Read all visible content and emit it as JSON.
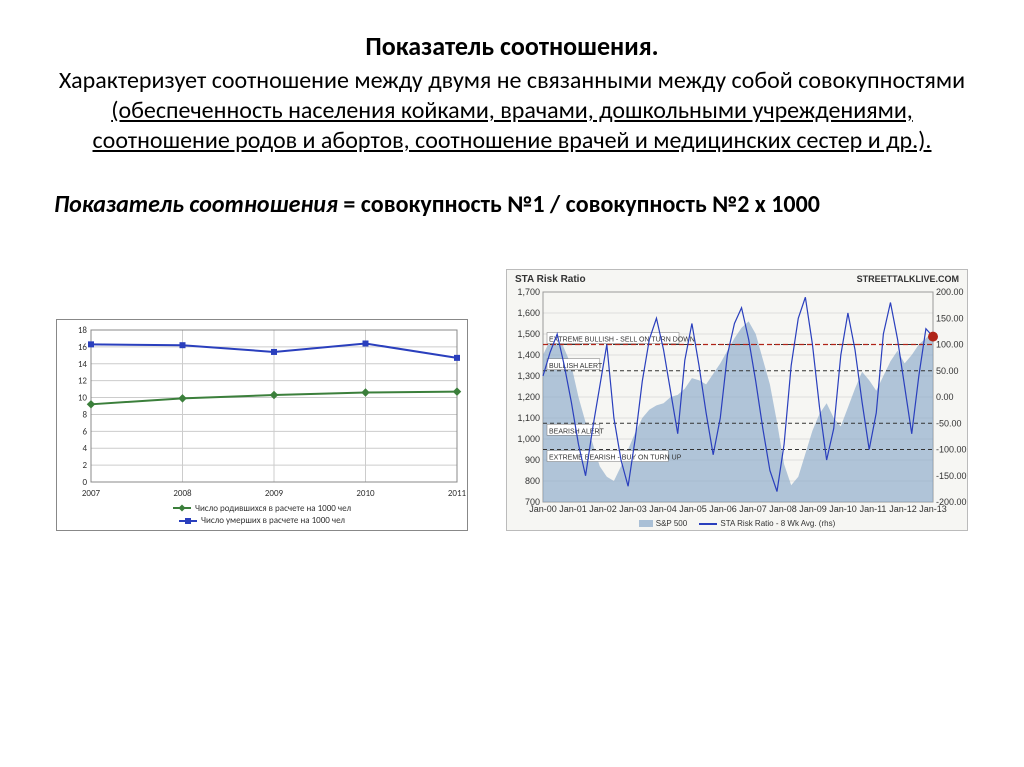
{
  "title": "Показатель соотношения.",
  "paragraph_plain": "Характеризует соотношение между двумя не связанными между собой совокупностями ",
  "paragraph_under": "(обеспеченность населения койками, врачами, дошкольными учреждениями, соотношение родов и абортов, соотношение врачей и медицинских сестер и др.).",
  "formula_ital": "Показатель соотношения",
  "formula_rest": " = совокупность №1 / совокупность №2 х 1000",
  "chart_left": {
    "type": "line",
    "ylim": [
      0,
      18
    ],
    "yticks": [
      0,
      2,
      4,
      6,
      8,
      10,
      12,
      14,
      16,
      18
    ],
    "xcats": [
      "2007",
      "2008",
      "2009",
      "2010",
      "2011"
    ],
    "series": [
      {
        "name": "Число родившихся в расчете на 1000 чел",
        "color": "#3b7f3b",
        "marker": "diamond",
        "values": [
          9.2,
          9.9,
          10.3,
          10.6,
          10.7
        ]
      },
      {
        "name": "Число умерших в расчете на 1000 чел",
        "color": "#2a3fbd",
        "marker": "square",
        "values": [
          16.3,
          16.2,
          15.4,
          16.4,
          14.7
        ]
      }
    ],
    "grid_color": "#cccccc",
    "background": "#ffffff",
    "label_fontsize": 9
  },
  "chart_right": {
    "type": "line-area",
    "title": "STA Risk Ratio",
    "brand": "STREETTALKLIVE.COM",
    "y_left": {
      "lim": [
        700,
        1700
      ],
      "ticks": [
        700,
        800,
        900,
        1000,
        1100,
        1200,
        1300,
        1400,
        1500,
        1600,
        1700
      ]
    },
    "y_right": {
      "lim": [
        -200,
        200
      ],
      "ticks": [
        -200,
        -150,
        -100,
        -50,
        0,
        50,
        100,
        150,
        200
      ]
    },
    "xticks": [
      "Jan-00",
      "Jan-01",
      "Jan-02",
      "Jan-03",
      "Jan-04",
      "Jan-05",
      "Jan-06",
      "Jan-07",
      "Jan-08",
      "Jan-09",
      "Jan-10",
      "Jan-11",
      "Jan-12",
      "Jan-13"
    ],
    "area_color": "#8aa9c9",
    "area_opacity": 0.65,
    "line_color": "#2a3fbd",
    "line_width": 1.2,
    "end_marker": {
      "color": "#b02418",
      "size": 5
    },
    "bands": [
      {
        "label": "EXTREME BULLISH - SELL ON TURN DOWN",
        "y_right": 100,
        "style": "dashed",
        "color": "#333"
      },
      {
        "label": "BULLISH ALERT",
        "y_right": 50,
        "style": "dashed",
        "color": "#333"
      },
      {
        "label": "BEARISH ALERT",
        "y_right": -50,
        "style": "dashed",
        "color": "#333"
      },
      {
        "label": "EXTREME BEARISH - BUY ON TURN UP",
        "y_right": -100,
        "style": "dashed",
        "color": "#333"
      }
    ],
    "legend": [
      {
        "label": "S&P 500",
        "swatch": "#8aa9c9",
        "kind": "area"
      },
      {
        "label": "STA Risk Ratio - 8 Wk Avg. (rhs)",
        "swatch": "#2a3fbd",
        "kind": "line"
      }
    ],
    "sp500": [
      1400,
      1470,
      1510,
      1430,
      1350,
      1200,
      1080,
      980,
      870,
      820,
      800,
      870,
      950,
      1030,
      1100,
      1140,
      1160,
      1170,
      1200,
      1210,
      1240,
      1290,
      1280,
      1260,
      1310,
      1360,
      1420,
      1480,
      1530,
      1560,
      1500,
      1380,
      1260,
      1080,
      880,
      780,
      820,
      930,
      1040,
      1120,
      1170,
      1100,
      1060,
      1150,
      1240,
      1320,
      1280,
      1230,
      1300,
      1370,
      1420,
      1360,
      1400,
      1450,
      1480,
      1510
    ],
    "risk": [
      40,
      85,
      120,
      60,
      -10,
      -90,
      -150,
      -60,
      20,
      100,
      -40,
      -120,
      -170,
      -80,
      30,
      110,
      150,
      90,
      10,
      -70,
      70,
      140,
      60,
      -30,
      -110,
      -40,
      80,
      140,
      170,
      110,
      30,
      -60,
      -140,
      -180,
      -90,
      60,
      150,
      190,
      100,
      -20,
      -120,
      -60,
      80,
      160,
      90,
      -10,
      -100,
      -30,
      120,
      180,
      110,
      20,
      -70,
      40,
      130,
      115
    ]
  }
}
